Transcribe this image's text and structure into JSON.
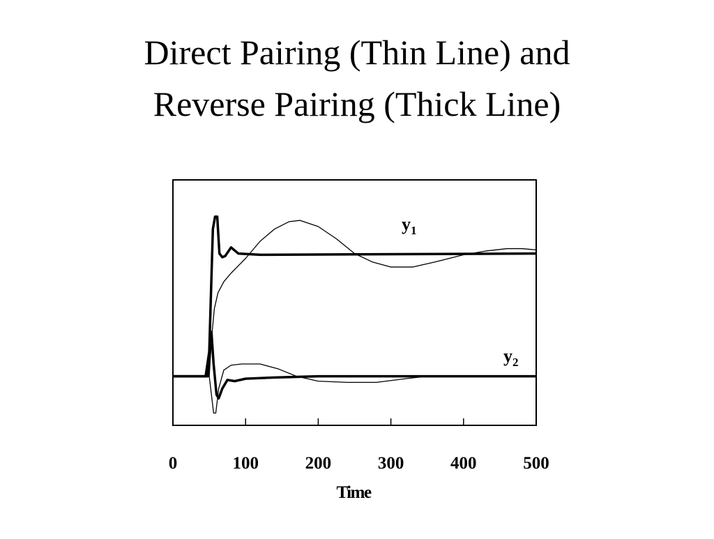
{
  "chart_data": {
    "type": "line",
    "title_lines": [
      "Direct Pairing (Thin Line) and",
      "Reverse Pairing (Thick Line)"
    ],
    "x_label": "Time",
    "annotations": [
      {
        "text": "y",
        "subscript": "1"
      },
      {
        "text": "y",
        "subscript": "2"
      }
    ],
    "xlim": [
      0,
      500
    ],
    "xticks": [
      0,
      100,
      200,
      300,
      400,
      500
    ],
    "ylim": [
      -0.4,
      1.6
    ],
    "series": [
      {
        "color": "#000000",
        "line_width": 1.3,
        "x": [
          0,
          50,
          53,
          57,
          62,
          70,
          80,
          90,
          100,
          120,
          140,
          160,
          175,
          200,
          225,
          250,
          275,
          300,
          330,
          360,
          400,
          430,
          460,
          480,
          500
        ],
        "values": [
          0,
          0,
          0.3,
          0.55,
          0.68,
          0.77,
          0.84,
          0.9,
          0.96,
          1.1,
          1.2,
          1.26,
          1.27,
          1.22,
          1.12,
          1.0,
          0.93,
          0.89,
          0.89,
          0.93,
          0.99,
          1.02,
          1.04,
          1.04,
          1.03
        ]
      },
      {
        "color": "#000000",
        "line_width": 3.5,
        "x": [
          0,
          45,
          50,
          55,
          58,
          61,
          64,
          68,
          72,
          80,
          90,
          120,
          500
        ],
        "values": [
          0,
          0,
          0.2,
          1.2,
          1.3,
          1.3,
          1.0,
          0.97,
          0.98,
          1.05,
          1.0,
          0.99,
          1.0
        ]
      },
      {
        "color": "#000000",
        "line_width": 1.3,
        "x": [
          0,
          50,
          53,
          56,
          59,
          63,
          70,
          80,
          95,
          120,
          145,
          170,
          200,
          240,
          280,
          320,
          350,
          500
        ],
        "values": [
          0,
          0,
          -0.15,
          -0.3,
          -0.3,
          -0.1,
          0.05,
          0.09,
          0.1,
          0.1,
          0.06,
          0.0,
          -0.04,
          -0.05,
          -0.05,
          -0.02,
          0,
          0
        ]
      },
      {
        "color": "#000000",
        "line_width": 3.5,
        "x": [
          0,
          48,
          51,
          53,
          56,
          60,
          63,
          68,
          75,
          85,
          100,
          140,
          200,
          500
        ],
        "values": [
          0,
          0,
          0.2,
          0.36,
          0.1,
          -0.15,
          -0.18,
          -0.1,
          -0.03,
          -0.04,
          -0.02,
          -0.01,
          0,
          0
        ]
      }
    ]
  }
}
